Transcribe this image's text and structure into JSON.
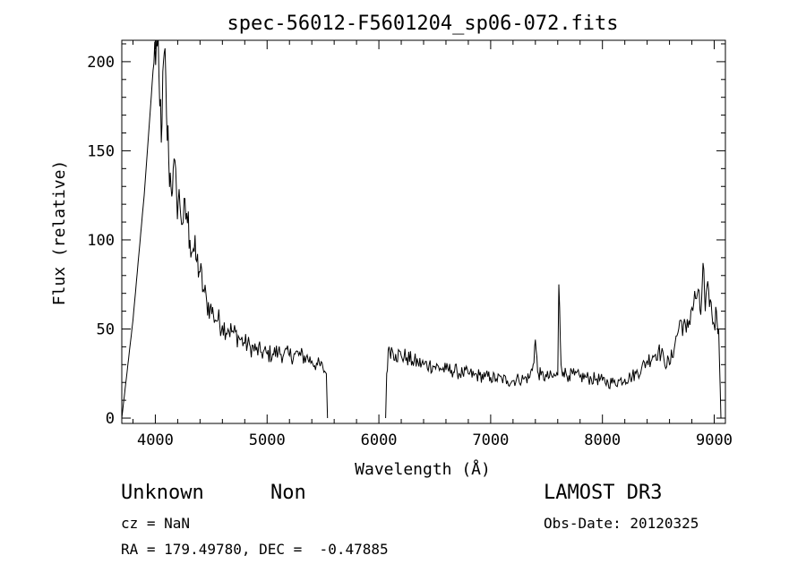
{
  "chart_data": {
    "type": "line",
    "title": "spec-56012-F5601204_sp06-072.fits",
    "xlabel": "Wavelength (Å)",
    "ylabel": "Flux (relative)",
    "xlim": [
      3700,
      9100
    ],
    "ylim": [
      -3,
      212
    ],
    "xticks": [
      4000,
      5000,
      6000,
      7000,
      8000,
      9000
    ],
    "yticks": [
      0,
      50,
      100,
      150,
      200
    ],
    "series": [
      {
        "name": "flux",
        "segments": [
          [
            [
              3700,
              0
            ],
            [
              3800,
              55
            ],
            [
              3900,
              125
            ],
            [
              3980,
              195
            ],
            [
              4010,
              212
            ],
            [
              4040,
              175
            ],
            [
              4060,
              165
            ],
            [
              4080,
              205
            ],
            [
              4100,
              170
            ],
            [
              4120,
              145
            ],
            [
              4140,
              130
            ],
            [
              4160,
              140
            ],
            [
              4190,
              125
            ],
            [
              4220,
              120
            ],
            [
              4250,
              110
            ],
            [
              4280,
              115
            ],
            [
              4310,
              100
            ],
            [
              4340,
              95
            ],
            [
              4370,
              88
            ],
            [
              4400,
              82
            ],
            [
              4430,
              72
            ],
            [
              4460,
              65
            ],
            [
              4490,
              62
            ],
            [
              4520,
              58
            ],
            [
              4560,
              55
            ],
            [
              4600,
              52
            ],
            [
              4650,
              50
            ],
            [
              4700,
              48
            ],
            [
              4750,
              45
            ],
            [
              4800,
              42
            ],
            [
              4850,
              40
            ],
            [
              4900,
              38
            ],
            [
              4950,
              37
            ],
            [
              5000,
              36
            ],
            [
              5050,
              36
            ],
            [
              5100,
              37
            ],
            [
              5150,
              36
            ],
            [
              5200,
              35
            ],
            [
              5250,
              36
            ],
            [
              5300,
              35
            ],
            [
              5350,
              34
            ],
            [
              5400,
              32
            ],
            [
              5450,
              30
            ],
            [
              5500,
              28
            ],
            [
              5530,
              25
            ],
            [
              5540,
              0
            ]
          ],
          [
            [
              6060,
              0
            ],
            [
              6070,
              25
            ],
            [
              6090,
              40
            ],
            [
              6120,
              38
            ],
            [
              6150,
              36
            ],
            [
              6200,
              35
            ],
            [
              6250,
              34
            ],
            [
              6300,
              32
            ],
            [
              6350,
              31
            ],
            [
              6400,
              30
            ],
            [
              6450,
              30
            ],
            [
              6500,
              29
            ],
            [
              6550,
              28
            ],
            [
              6600,
              27
            ],
            [
              6650,
              27
            ],
            [
              6700,
              26
            ],
            [
              6750,
              25
            ],
            [
              6800,
              25
            ],
            [
              6850,
              24
            ],
            [
              6900,
              24
            ],
            [
              6950,
              23
            ],
            [
              7000,
              23
            ],
            [
              7050,
              22
            ],
            [
              7100,
              22
            ],
            [
              7150,
              21
            ],
            [
              7200,
              21
            ],
            [
              7250,
              22
            ],
            [
              7300,
              22
            ],
            [
              7350,
              23
            ],
            [
              7380,
              30
            ],
            [
              7400,
              44
            ],
            [
              7420,
              26
            ],
            [
              7450,
              24
            ],
            [
              7500,
              23
            ],
            [
              7550,
              23
            ],
            [
              7600,
              24
            ],
            [
              7610,
              75
            ],
            [
              7630,
              30
            ],
            [
              7650,
              26
            ],
            [
              7700,
              24
            ],
            [
              7750,
              24
            ],
            [
              7800,
              23
            ],
            [
              7850,
              23
            ],
            [
              7900,
              22
            ],
            [
              7950,
              22
            ],
            [
              8000,
              21
            ],
            [
              8050,
              20
            ],
            [
              8100,
              20
            ],
            [
              8150,
              21
            ],
            [
              8200,
              22
            ],
            [
              8250,
              23
            ],
            [
              8300,
              25
            ],
            [
              8350,
              28
            ],
            [
              8400,
              32
            ],
            [
              8450,
              35
            ],
            [
              8500,
              38
            ],
            [
              8550,
              33
            ],
            [
              8600,
              30
            ],
            [
              8650,
              42
            ],
            [
              8700,
              55
            ],
            [
              8750,
              48
            ],
            [
              8800,
              62
            ],
            [
              8850,
              70
            ],
            [
              8880,
              58
            ],
            [
              8900,
              87
            ],
            [
              8920,
              60
            ],
            [
              8950,
              72
            ],
            [
              8980,
              58
            ],
            [
              9000,
              52
            ],
            [
              9020,
              60
            ],
            [
              9040,
              50
            ],
            [
              9060,
              0
            ]
          ]
        ]
      }
    ]
  },
  "info": {
    "class": "Unknown",
    "subclass": "Non",
    "survey": "LAMOST DR3",
    "cz": "cz = NaN",
    "obs_date": "Obs-Date: 20120325",
    "coords": "RA = 179.49780, DEC =  -0.47885"
  },
  "colors": {
    "line": "#000000",
    "axis": "#000000"
  }
}
